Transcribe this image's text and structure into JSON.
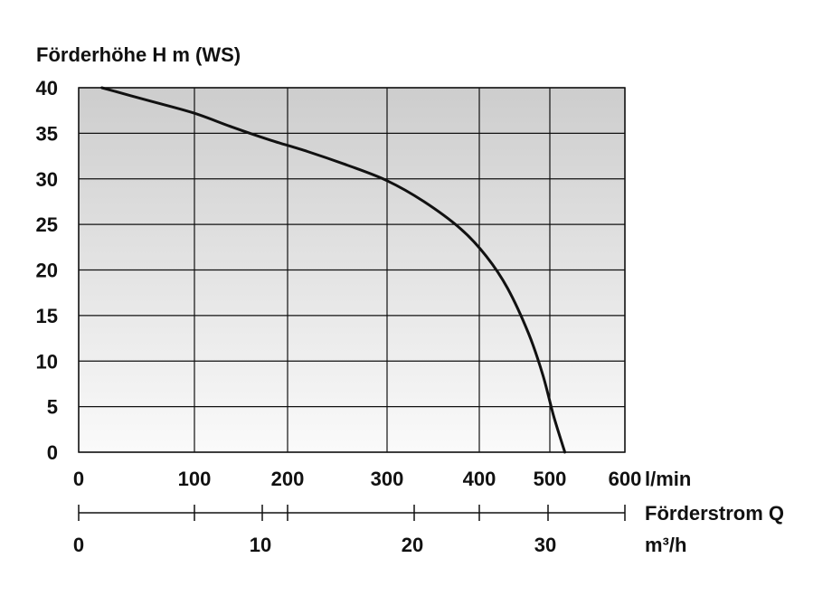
{
  "chart_data": {
    "type": "line",
    "ylabel": "Förderhöhe H m (WS)",
    "xlabel": "Förderstrom Q",
    "x_unit_primary": "l/min",
    "x_unit_secondary": "m³/h",
    "ylim": [
      0,
      40
    ],
    "y_ticks": [
      "0",
      "5",
      "10",
      "15",
      "20",
      "25",
      "30",
      "35",
      "40"
    ],
    "x_ticks_primary": [
      "0",
      "100",
      "200",
      "300",
      "400",
      "500",
      "600"
    ],
    "x_ticks_secondary": [
      "0",
      "10",
      "20",
      "30"
    ],
    "grid": true,
    "series": [
      {
        "x": [
          20,
          60,
          100,
          140,
          180,
          220,
          260,
          300,
          340,
          380,
          410,
          440,
          470,
          490,
          505,
          520
        ],
        "y": [
          40,
          38.6,
          37.2,
          35.7,
          34.3,
          33.0,
          31.5,
          29.8,
          27.5,
          24.5,
          21.5,
          18.0,
          13.0,
          8.5,
          4.0,
          0
        ]
      }
    ]
  }
}
